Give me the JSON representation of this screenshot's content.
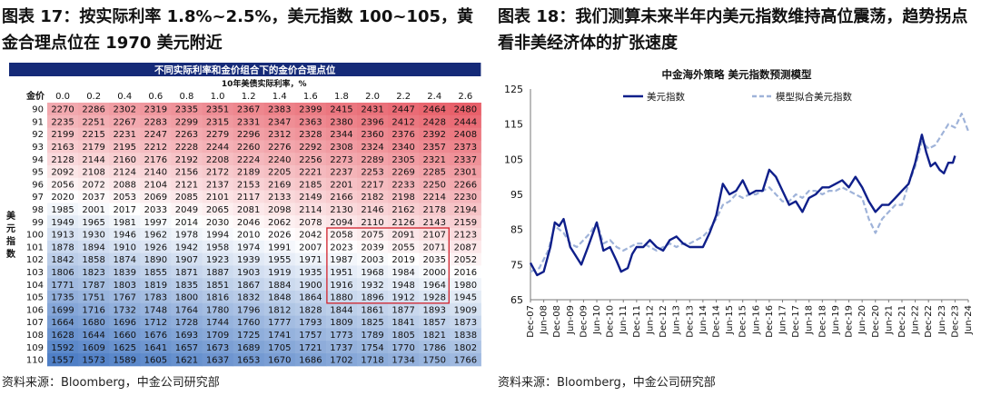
{
  "figure17": {
    "title": "图表 17：按实际利率 1.8%~2.5%，美元指数 100~105，黄金合理点位在 1970 美元附近",
    "source": "资料来源：Bloomberg，中金公司研究部"
  },
  "figure18": {
    "title": "图表 18：我们测算未来半年内美元指数维持高位震荡，趋势拐点看非美经济体的扩张速度",
    "source": "资料来源：Bloomberg，中金公司研究部"
  },
  "chart_data": [
    {
      "type": "heatmap",
      "title": "不同实际利率和金价组合下的金价合理点位",
      "subtitle": "10年美债实际利率，%",
      "corner_label": "金价",
      "ylabel": "美元指数",
      "colors": {
        "high": "#e8606a",
        "mid": "#ffffff",
        "low": "#4f7fc6",
        "header": "#152a78",
        "highlight": "#d0202a"
      },
      "x": [
        "0.0",
        "0.2",
        "0.4",
        "0.6",
        "0.8",
        "1.0",
        "1.2",
        "1.4",
        "1.6",
        "1.8",
        "2.0",
        "2.2",
        "2.4",
        "2.6"
      ],
      "y": [
        "90",
        "91",
        "92",
        "93",
        "94",
        "95",
        "96",
        "97",
        "98",
        "99",
        "100",
        "101",
        "102",
        "103",
        "104",
        "105",
        "106",
        "107",
        "108",
        "109",
        "110"
      ],
      "highlight": {
        "x_range": [
          "1.8",
          "2.4"
        ],
        "y_range": [
          "100",
          "105"
        ]
      },
      "values": [
        [
          2270,
          2286,
          2302,
          2319,
          2335,
          2351,
          2367,
          2383,
          2399,
          2415,
          2431,
          2447,
          2464,
          2480
        ],
        [
          2235,
          2251,
          2267,
          2283,
          2299,
          2315,
          2331,
          2347,
          2363,
          2380,
          2396,
          2412,
          2428,
          2444
        ],
        [
          2199,
          2215,
          2231,
          2247,
          2263,
          2279,
          2296,
          2312,
          2328,
          2344,
          2360,
          2376,
          2392,
          2408
        ],
        [
          2163,
          2179,
          2195,
          2212,
          2228,
          2244,
          2260,
          2276,
          2292,
          2308,
          2324,
          2340,
          2357,
          2373
        ],
        [
          2128,
          2144,
          2160,
          2176,
          2192,
          2208,
          2224,
          2240,
          2256,
          2273,
          2289,
          2305,
          2321,
          2337
        ],
        [
          2092,
          2108,
          2124,
          2140,
          2156,
          2172,
          2189,
          2205,
          2221,
          2237,
          2253,
          2269,
          2285,
          2301
        ],
        [
          2056,
          2072,
          2088,
          2104,
          2121,
          2137,
          2153,
          2169,
          2185,
          2201,
          2217,
          2233,
          2250,
          2266
        ],
        [
          2020,
          2037,
          2053,
          2069,
          2085,
          2101,
          2117,
          2133,
          2149,
          2166,
          2182,
          2198,
          2214,
          2230
        ],
        [
          1985,
          2001,
          2017,
          2033,
          2049,
          2065,
          2081,
          2098,
          2114,
          2130,
          2146,
          2162,
          2178,
          2194
        ],
        [
          1949,
          1965,
          1981,
          1997,
          2014,
          2030,
          2046,
          2062,
          2078,
          2094,
          2110,
          2126,
          2143,
          2159
        ],
        [
          1913,
          1930,
          1946,
          1962,
          1978,
          1994,
          2010,
          2026,
          2042,
          2058,
          2075,
          2091,
          2107,
          2123
        ],
        [
          1878,
          1894,
          1910,
          1926,
          1942,
          1958,
          1974,
          1991,
          2007,
          2023,
          2039,
          2055,
          2071,
          2087
        ],
        [
          1842,
          1858,
          1874,
          1890,
          1907,
          1923,
          1939,
          1955,
          1971,
          1987,
          2003,
          2019,
          2035,
          2052
        ],
        [
          1806,
          1823,
          1839,
          1855,
          1871,
          1887,
          1903,
          1919,
          1935,
          1951,
          1968,
          1984,
          2000,
          2016
        ],
        [
          1771,
          1787,
          1803,
          1819,
          1835,
          1851,
          1867,
          1884,
          1900,
          1916,
          1932,
          1948,
          1964,
          1980
        ],
        [
          1735,
          1751,
          1767,
          1783,
          1800,
          1816,
          1832,
          1848,
          1864,
          1880,
          1896,
          1912,
          1928,
          1945
        ],
        [
          1699,
          1716,
          1732,
          1748,
          1764,
          1780,
          1796,
          1812,
          1828,
          1844,
          1861,
          1877,
          1893,
          1909
        ],
        [
          1664,
          1680,
          1696,
          1712,
          1728,
          1744,
          1760,
          1777,
          1793,
          1809,
          1825,
          1841,
          1857,
          1873
        ],
        [
          1628,
          1644,
          1660,
          1676,
          1693,
          1709,
          1725,
          1741,
          1757,
          1773,
          1789,
          1805,
          1821,
          1838
        ],
        [
          1592,
          1609,
          1625,
          1641,
          1657,
          1673,
          1689,
          1705,
          1721,
          1737,
          1754,
          1770,
          1786,
          1802
        ],
        [
          1557,
          1573,
          1589,
          1605,
          1621,
          1637,
          1653,
          1670,
          1686,
          1702,
          1718,
          1734,
          1750,
          1766
        ]
      ]
    },
    {
      "type": "line",
      "title": "中金海外策略 美元指数预测模型",
      "xlabel": "",
      "ylabel": "",
      "ylim": [
        65,
        125
      ],
      "yticks": [
        65,
        75,
        85,
        95,
        105,
        115,
        125
      ],
      "x_ticks": [
        "Dec-07",
        "Jun-08",
        "Dec-08",
        "Jun-09",
        "Dec-09",
        "Jun-10",
        "Dec-10",
        "Jun-11",
        "Dec-11",
        "Jun-12",
        "Dec-12",
        "Jun-13",
        "Dec-13",
        "Jun-14",
        "Dec-14",
        "Jun-15",
        "Dec-15",
        "Jun-16",
        "Dec-16",
        "Jun-17",
        "Dec-17",
        "Jun-18",
        "Dec-18",
        "Jun-19",
        "Dec-19",
        "Jun-20",
        "Dec-20",
        "Jun-21",
        "Dec-21",
        "Jun-22",
        "Dec-22",
        "Jun-23",
        "Dec-23",
        "Jun-24"
      ],
      "grid": false,
      "legend": "top-left",
      "series": [
        {
          "name": "美元指数",
          "color": "#0f1f8a",
          "style": "solid",
          "x": [
            "2007-12",
            "2008-03",
            "2008-06",
            "2008-09",
            "2008-11",
            "2009-01",
            "2009-03",
            "2009-06",
            "2009-09",
            "2009-11",
            "2010-02",
            "2010-06",
            "2010-09",
            "2010-12",
            "2011-03",
            "2011-05",
            "2011-08",
            "2011-10",
            "2011-12",
            "2012-03",
            "2012-06",
            "2012-09",
            "2012-12",
            "2013-03",
            "2013-06",
            "2013-09",
            "2013-12",
            "2014-03",
            "2014-06",
            "2014-09",
            "2014-12",
            "2015-03",
            "2015-06",
            "2015-09",
            "2015-12",
            "2016-03",
            "2016-06",
            "2016-09",
            "2016-12",
            "2017-03",
            "2017-06",
            "2017-09",
            "2017-12",
            "2018-03",
            "2018-06",
            "2018-09",
            "2018-12",
            "2019-03",
            "2019-06",
            "2019-09",
            "2019-12",
            "2020-03",
            "2020-06",
            "2020-09",
            "2020-12",
            "2021-03",
            "2021-06",
            "2021-09",
            "2021-12",
            "2022-03",
            "2022-06",
            "2022-09",
            "2022-11",
            "2023-01",
            "2023-03",
            "2023-05",
            "2023-07",
            "2023-09",
            "2023-11",
            "2023-12"
          ],
          "y": [
            75.5,
            72,
            73,
            80,
            87,
            86,
            88,
            80,
            77,
            75,
            80,
            87,
            79,
            80,
            76,
            73,
            74,
            78,
            80,
            80,
            82,
            80,
            79,
            82,
            83,
            81,
            80,
            80,
            80,
            84,
            89,
            98,
            95,
            96,
            99,
            95,
            96,
            96,
            102,
            100,
            96,
            92,
            93,
            90,
            94,
            95,
            97,
            97,
            98,
            99,
            97,
            100,
            97,
            93,
            90,
            92,
            92,
            94,
            96,
            98,
            104,
            112,
            107,
            103,
            104,
            102,
            101,
            104,
            104,
            106
          ]
        },
        {
          "name": "模型拟合美元指数",
          "color": "#9fb3d9",
          "style": "dashed",
          "x": [
            "2007-12",
            "2008-04",
            "2008-08",
            "2008-11",
            "2009-03",
            "2009-06",
            "2009-09",
            "2009-12",
            "2010-03",
            "2010-06",
            "2010-09",
            "2010-12",
            "2011-03",
            "2011-06",
            "2011-09",
            "2011-12",
            "2012-03",
            "2012-06",
            "2012-09",
            "2012-12",
            "2013-03",
            "2013-06",
            "2013-09",
            "2013-12",
            "2014-03",
            "2014-06",
            "2014-09",
            "2014-12",
            "2015-03",
            "2015-06",
            "2015-09",
            "2015-12",
            "2016-03",
            "2016-06",
            "2016-09",
            "2016-12",
            "2017-03",
            "2017-06",
            "2017-09",
            "2017-12",
            "2018-03",
            "2018-06",
            "2018-09",
            "2018-12",
            "2019-03",
            "2019-06",
            "2019-09",
            "2019-12",
            "2020-03",
            "2020-06",
            "2020-09",
            "2020-12",
            "2021-03",
            "2021-06",
            "2021-09",
            "2021-12",
            "2022-03",
            "2022-06",
            "2022-09",
            "2022-12",
            "2023-03",
            "2023-06",
            "2023-09",
            "2023-12",
            "2024-03",
            "2024-06"
          ],
          "y": [
            73,
            74,
            79,
            86,
            84,
            81,
            80,
            82,
            84,
            87,
            81,
            82,
            80,
            79,
            80,
            81,
            81,
            80,
            79,
            80,
            81,
            80,
            81,
            81,
            82,
            83,
            85,
            88,
            92,
            93,
            95,
            94,
            95,
            95,
            96,
            97,
            95,
            93,
            93,
            95,
            94,
            96,
            96,
            95,
            96,
            96,
            97,
            96,
            95,
            94,
            88,
            84,
            88,
            90,
            92,
            92,
            98,
            103,
            110,
            108,
            109,
            112,
            115,
            114,
            118,
            113
          ]
        }
      ]
    }
  ]
}
